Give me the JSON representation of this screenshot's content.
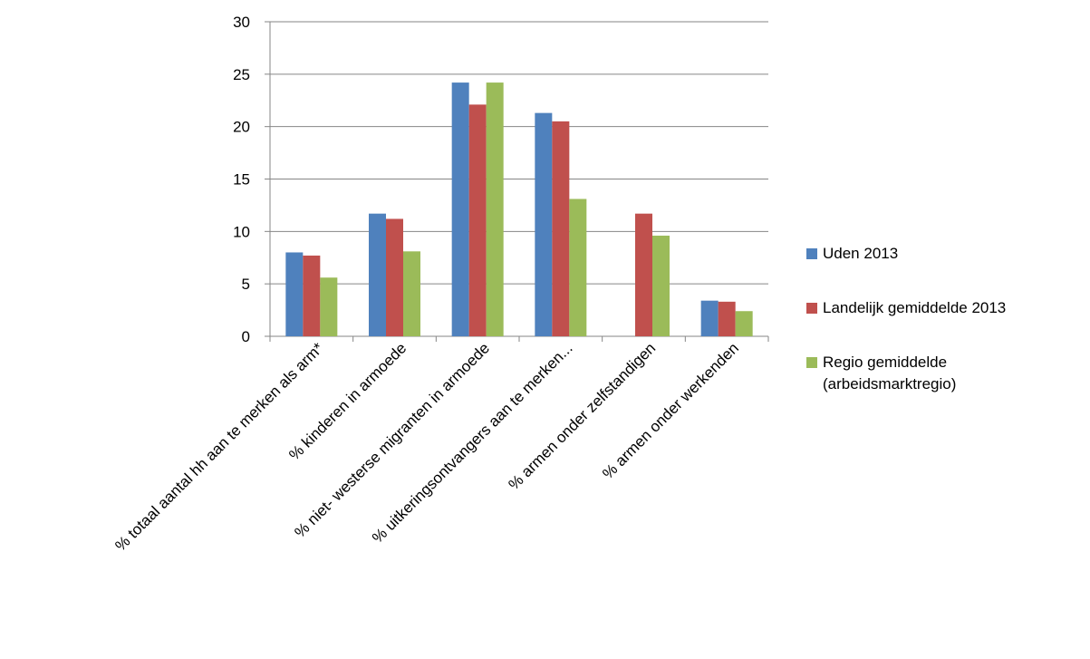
{
  "chart_data": {
    "type": "bar",
    "title": "",
    "xlabel": "",
    "ylabel": "",
    "ylim": [
      0,
      30
    ],
    "yticks": [
      0,
      5,
      10,
      15,
      20,
      25,
      30
    ],
    "grid": true,
    "legend_position": "right",
    "categories": [
      "% totaal aantal hh aan te merken als arm*",
      "% kinderen in armoede",
      "% niet- westerse migranten in armoede",
      "% uitkeringsontvangers aan te merken...",
      "% armen onder zelfstandigen",
      "% armen onder werkenden"
    ],
    "series": [
      {
        "name": "Uden 2013",
        "color": "#4f81bd",
        "values": [
          8.0,
          11.7,
          24.2,
          21.3,
          null,
          3.4
        ]
      },
      {
        "name": "Landelijk gemiddelde 2013",
        "color": "#c0504d",
        "values": [
          7.7,
          11.2,
          22.1,
          20.5,
          11.7,
          3.3
        ]
      },
      {
        "name": "Regio gemiddelde (arbeidsmarktregio)",
        "color": "#9bbb59",
        "values": [
          5.6,
          8.1,
          24.2,
          13.1,
          9.6,
          2.4
        ]
      }
    ],
    "legend_lines": [
      [
        "Uden 2013"
      ],
      [
        "Landelijk gemiddelde 2013"
      ],
      [
        "Regio gemiddelde",
        "(arbeidsmarktregio)"
      ]
    ]
  }
}
